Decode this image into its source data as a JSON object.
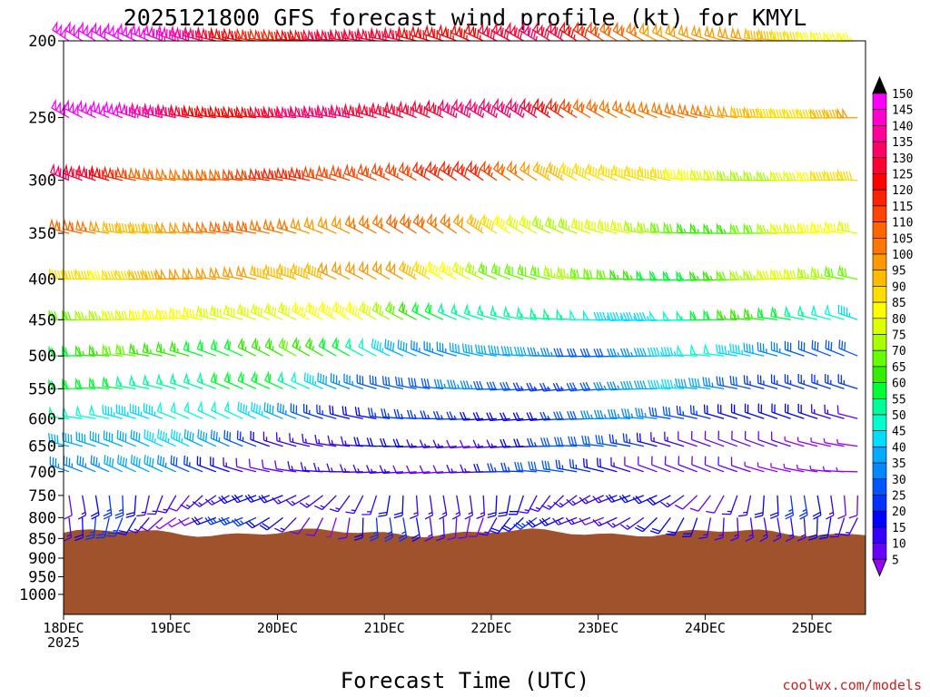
{
  "chart_data": {
    "type": "wind-barb time-height",
    "title": "2025121800 GFS forecast wind profile (kt) for KMYL",
    "xlabel": "Forecast Time (UTC)",
    "ylabel": "",
    "credit": "coolwx.com/models",
    "x_ticks": [
      {
        "label": "18DEC",
        "sublabel": "2025",
        "hours": 0
      },
      {
        "label": "19DEC",
        "hours": 24
      },
      {
        "label": "20DEC",
        "hours": 48
      },
      {
        "label": "21DEC",
        "hours": 72
      },
      {
        "label": "22DEC",
        "hours": 96
      },
      {
        "label": "23DEC",
        "hours": 120
      },
      {
        "label": "24DEC",
        "hours": 144
      },
      {
        "label": "25DEC",
        "hours": 168
      }
    ],
    "x_range_hours": [
      0,
      180
    ],
    "y_ticks": [
      "200",
      "250",
      "300",
      "350",
      "400",
      "450",
      "500",
      "550",
      "600",
      "650",
      "700",
      "750",
      "800",
      "850",
      "900",
      "950",
      "1000"
    ],
    "y_range_hpa": [
      200,
      1060
    ],
    "surface_pressure_hpa": 836,
    "time_step_hours": 3,
    "colorbar": {
      "labels": [
        "150",
        "145",
        "140",
        "135",
        "130",
        "125",
        "120",
        "115",
        "110",
        "105",
        "100",
        "95",
        "90",
        "85",
        "80",
        "75",
        "70",
        "65",
        "60",
        "55",
        "50",
        "45",
        "40",
        "35",
        "30",
        "25",
        "20",
        "15",
        "10",
        "5"
      ],
      "colors": [
        "#ff00ff",
        "#ff00cc",
        "#ff0099",
        "#ff0066",
        "#ff0033",
        "#ff0000",
        "#ff2200",
        "#ff4400",
        "#ff6600",
        "#ff7700",
        "#ff9900",
        "#ffbb00",
        "#ffdd00",
        "#ffff00",
        "#ddff00",
        "#aaff00",
        "#66ff00",
        "#33ee00",
        "#00ff33",
        "#00ff99",
        "#00ffcc",
        "#00ddff",
        "#00aaff",
        "#0088ff",
        "#0055ff",
        "#0033ff",
        "#0000ff",
        "#3300ff",
        "#6600ff",
        "#9900ff"
      ]
    },
    "levels_plotted_hpa": [
      200,
      250,
      300,
      350,
      400,
      450,
      500,
      550,
      600,
      650,
      700,
      750,
      800,
      850
    ],
    "profile_at_hour_0": [
      {
        "p": 200,
        "speed_kt": 150,
        "dir_deg": 290
      },
      {
        "p": 250,
        "speed_kt": 150,
        "dir_deg": 290
      },
      {
        "p": 300,
        "speed_kt": 130,
        "dir_deg": 290
      },
      {
        "p": 350,
        "speed_kt": 115,
        "dir_deg": 290
      },
      {
        "p": 400,
        "speed_kt": 105,
        "dir_deg": 285
      },
      {
        "p": 450,
        "speed_kt": 85,
        "dir_deg": 285
      },
      {
        "p": 500,
        "speed_kt": 65,
        "dir_deg": 285
      },
      {
        "p": 550,
        "speed_kt": 55,
        "dir_deg": 280
      },
      {
        "p": 600,
        "speed_kt": 45,
        "dir_deg": 280
      },
      {
        "p": 650,
        "speed_kt": 35,
        "dir_deg": 280
      },
      {
        "p": 700,
        "speed_kt": 30,
        "dir_deg": 280
      },
      {
        "p": 750,
        "speed_kt": 20,
        "dir_deg": 270
      },
      {
        "p": 800,
        "speed_kt": 12,
        "dir_deg": 250
      }
    ]
  }
}
